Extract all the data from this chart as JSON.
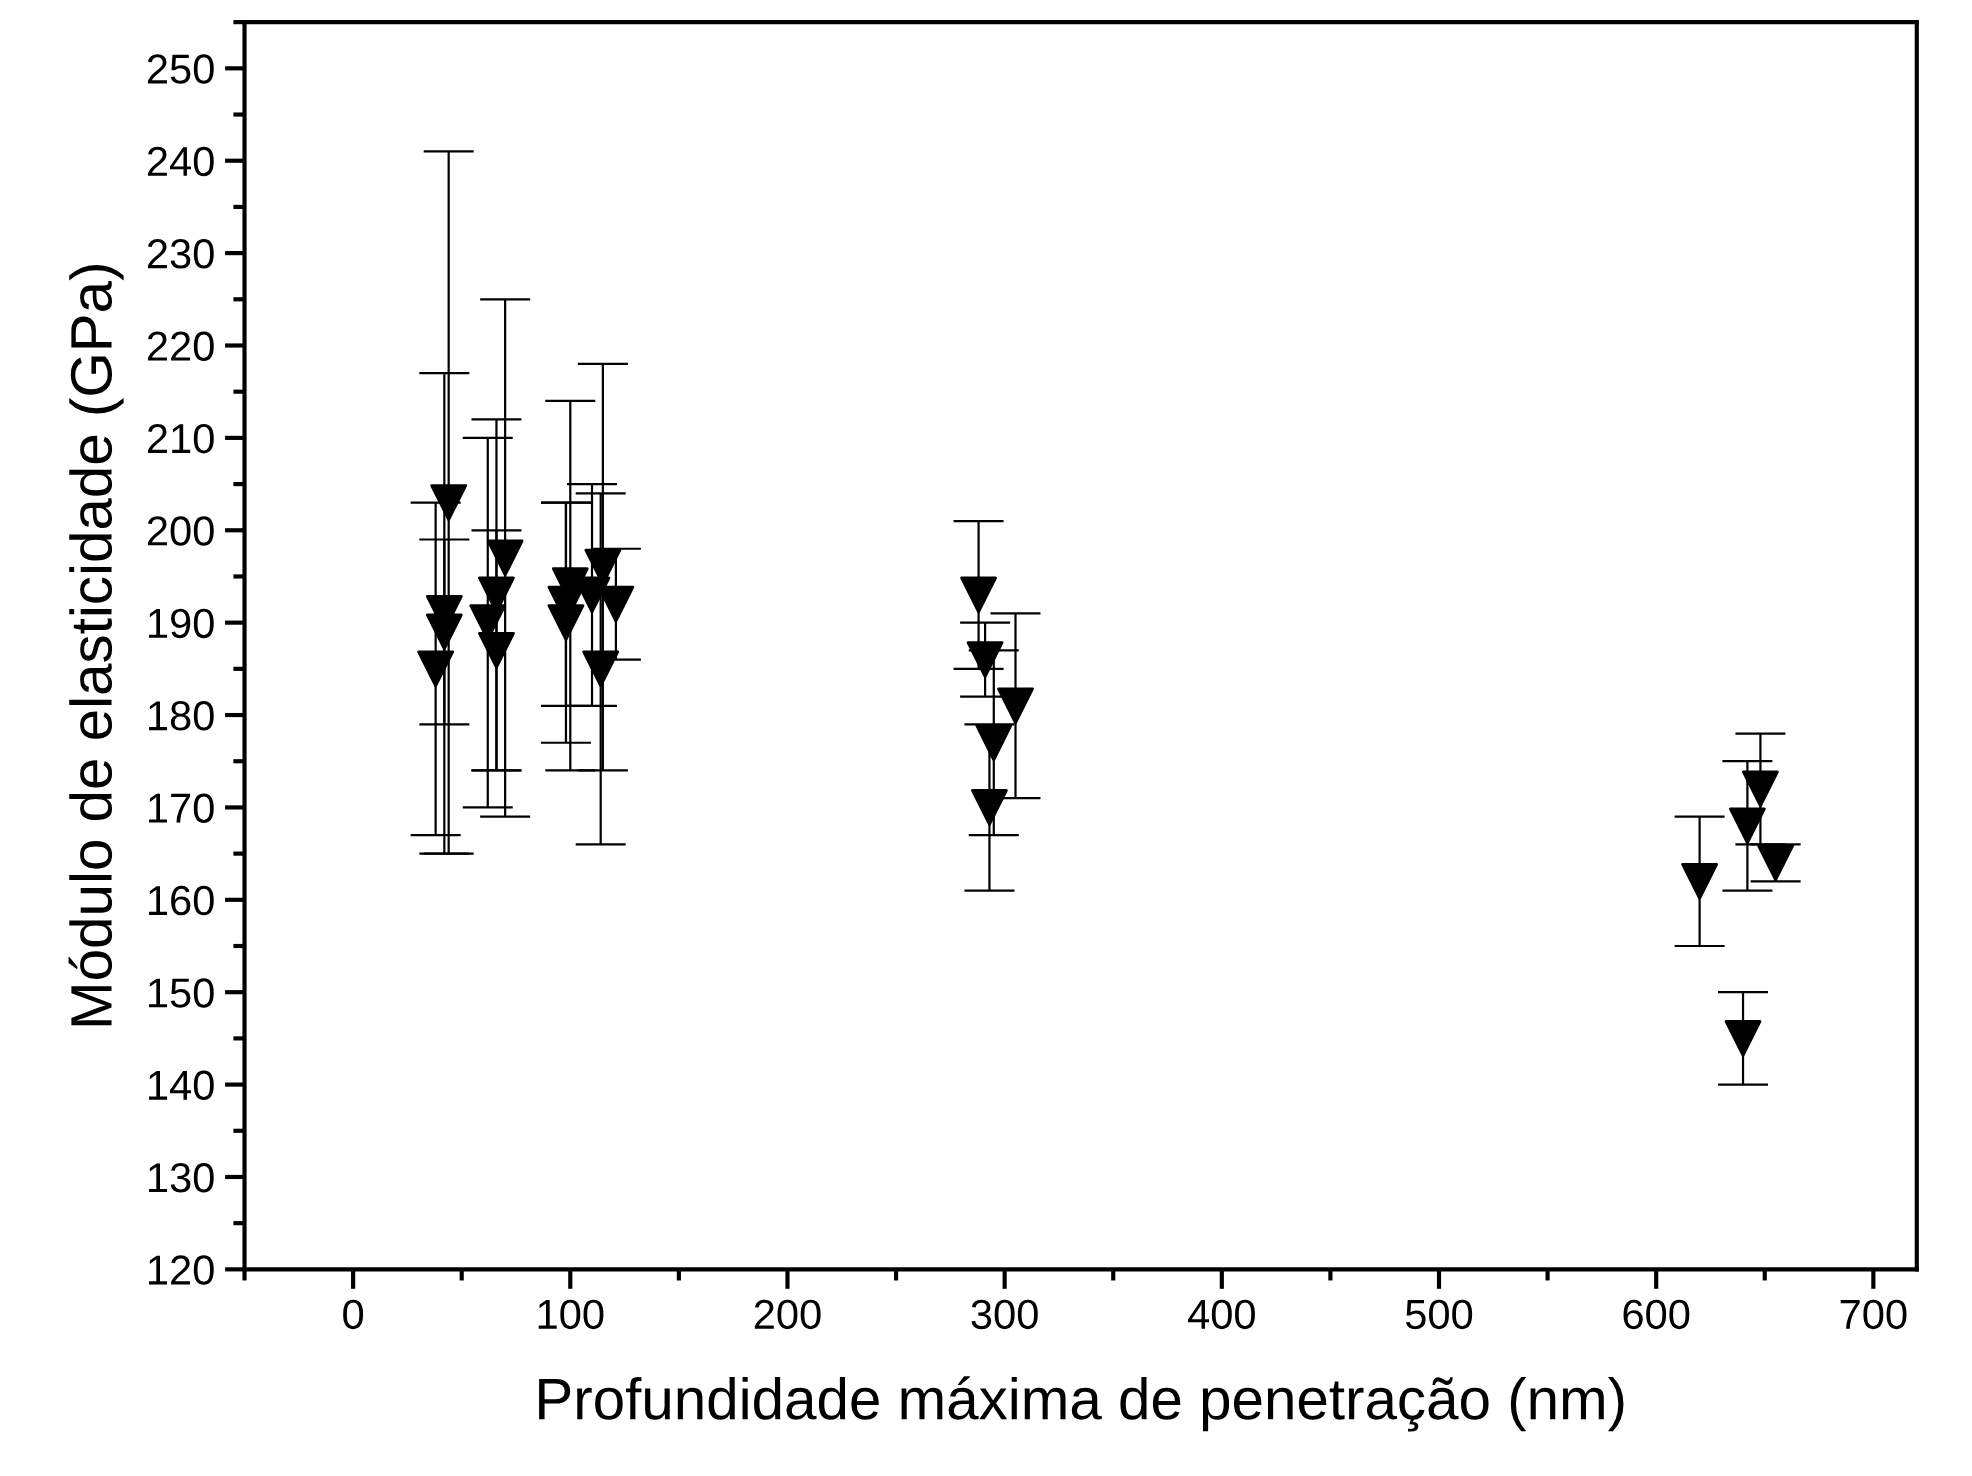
{
  "chart_data": {
    "type": "scatter",
    "xlabel": "Profundidade máxima de penetração (nm)",
    "ylabel": "Módulo de elasticidade (GPa)",
    "xlim": [
      -50,
      720
    ],
    "xticks": [
      0,
      100,
      200,
      300,
      400,
      500,
      600,
      700
    ],
    "ylim": [
      120,
      255
    ],
    "yticks": [
      120,
      130,
      140,
      150,
      160,
      170,
      180,
      190,
      200,
      210,
      220,
      230,
      240,
      250
    ],
    "grid": false,
    "legend": false,
    "marker": "triangle",
    "series": [
      {
        "color": "#000000",
        "x": [
          44,
          42,
          42,
          38,
          70,
          66,
          62,
          66,
          100,
          98,
          98,
          115,
          110,
          121,
          114,
          288,
          291,
          295,
          293,
          305,
          620,
          640,
          642,
          648,
          655
        ],
        "values": [
          203,
          191,
          189,
          185,
          197,
          193,
          190,
          187,
          194,
          192,
          190,
          196,
          193,
          192,
          185,
          193,
          186,
          177,
          170,
          181,
          162,
          145,
          168,
          172,
          164
        ],
        "errors": [
          38,
          26,
          10,
          18,
          28,
          19,
          20,
          13,
          20,
          11,
          13,
          22,
          12,
          6,
          19,
          8,
          4,
          10,
          9,
          10,
          7,
          5,
          7,
          6,
          2
        ]
      }
    ]
  }
}
